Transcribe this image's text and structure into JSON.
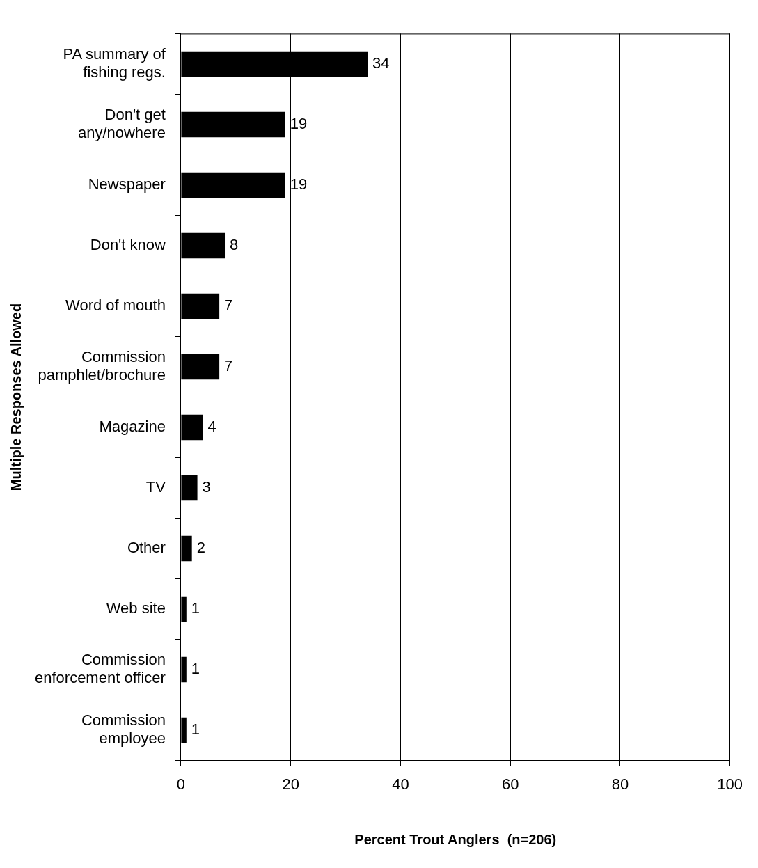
{
  "chart_data": {
    "type": "bar",
    "orientation": "horizontal",
    "xlabel": "Percent Trout Anglers  (n=206)",
    "ylabel": "Multiple Responses Allowed",
    "categories": [
      "PA summary of fishing regs.",
      "Don't get any/nowhere",
      "Newspaper",
      "Don't know",
      "Word of mouth",
      "Commission pamphlet/brochure",
      "Magazine",
      "TV",
      "Other",
      "Web site",
      "Commission enforcement officer",
      "Commission employee"
    ],
    "values": [
      34,
      19,
      19,
      8,
      7,
      7,
      4,
      3,
      2,
      1,
      1,
      1
    ],
    "color": "#000000",
    "xlim": [
      0,
      100
    ],
    "xticks": [
      0,
      20,
      40,
      60,
      80,
      100
    ],
    "grid": "x",
    "data_labels": true,
    "legend": false
  }
}
